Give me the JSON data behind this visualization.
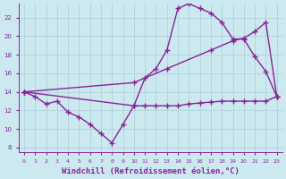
{
  "background_color": "#cce9f0",
  "grid_color": "#aacdd8",
  "line_color": "#882299",
  "marker": "+",
  "markersize": 4,
  "linewidth": 1.0,
  "xlabel": "Windchill (Refroidissement éolien,°C)",
  "xlabel_fontsize": 6.5,
  "xlim": [
    -0.5,
    23.5
  ],
  "ylim": [
    7.5,
    23.5
  ],
  "yticks": [
    8,
    10,
    12,
    14,
    16,
    18,
    20,
    22
  ],
  "xticks": [
    0,
    1,
    2,
    3,
    4,
    5,
    6,
    7,
    8,
    9,
    10,
    11,
    12,
    13,
    14,
    15,
    16,
    17,
    18,
    19,
    20,
    21,
    22,
    23
  ],
  "series1_x": [
    0,
    1,
    2,
    3,
    4,
    5,
    6,
    7,
    8,
    9,
    10,
    11,
    12,
    13,
    14,
    15,
    16,
    17,
    18,
    19,
    20,
    21,
    22,
    23
  ],
  "series1_y": [
    14.0,
    13.5,
    12.7,
    13.0,
    11.8,
    11.3,
    10.5,
    9.5,
    8.5,
    10.5,
    12.5,
    12.5,
    12.5,
    12.5,
    12.5,
    12.7,
    12.8,
    12.9,
    13.0,
    13.0,
    13.0,
    13.0,
    13.0,
    13.5
  ],
  "series2_x": [
    0,
    10,
    11,
    12,
    13,
    14,
    15,
    16,
    17,
    18,
    19,
    20,
    21,
    22,
    23
  ],
  "series2_y": [
    14.0,
    12.5,
    15.5,
    16.5,
    18.5,
    23.0,
    23.5,
    23.0,
    22.5,
    21.5,
    19.7,
    19.7,
    17.8,
    16.2,
    13.5
  ],
  "series3_x": [
    0,
    10,
    13,
    17,
    19,
    20,
    21,
    22,
    23
  ],
  "series3_y": [
    14.0,
    15.0,
    16.5,
    18.5,
    19.5,
    19.8,
    20.5,
    21.5,
    13.5
  ]
}
